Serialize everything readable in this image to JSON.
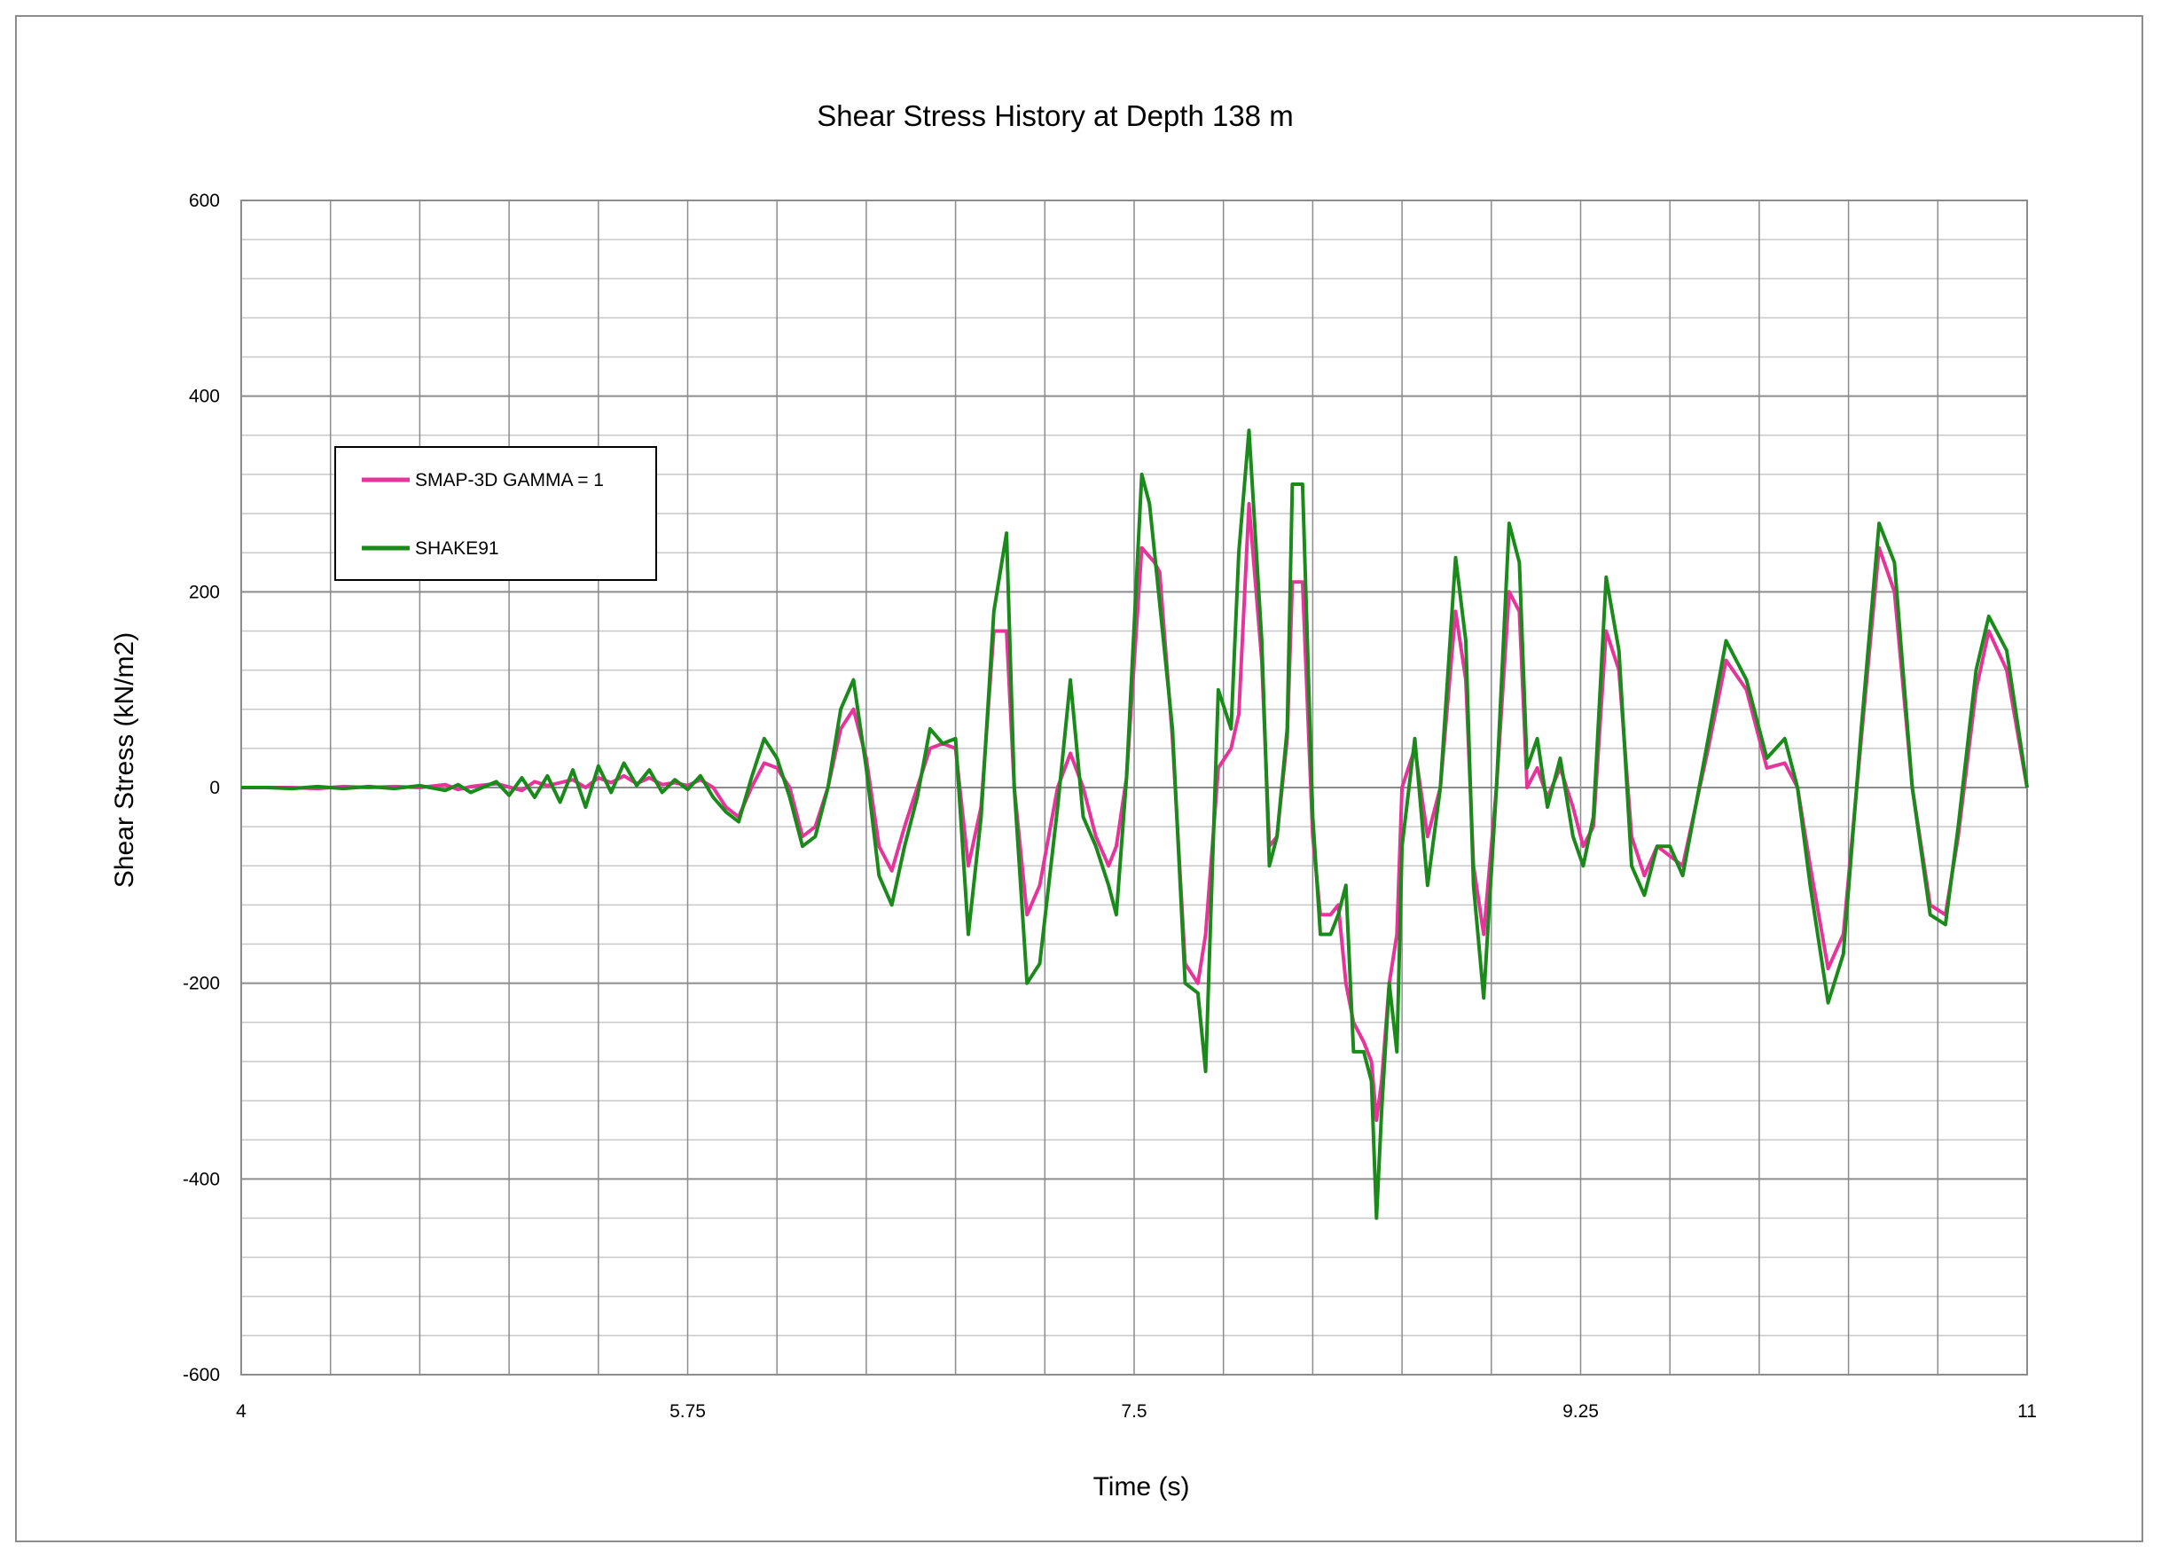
{
  "chart_data": {
    "type": "line",
    "title": "Shear Stress History  at Depth 138 m",
    "xlabel": "Time (s)",
    "ylabel": "Shear  Stress (kN/m2)",
    "xlim": [
      4,
      11
    ],
    "ylim": [
      -600,
      600
    ],
    "x_ticks": [
      4,
      5.75,
      7.5,
      9.25,
      11
    ],
    "x_tick_labels": [
      "4",
      "5.75",
      "7.5",
      "9.25",
      "11"
    ],
    "y_ticks": [
      600,
      400,
      200,
      0,
      -200,
      -400,
      -600
    ],
    "y_tick_labels": [
      "600",
      "400",
      "200",
      "0",
      "-200",
      "-400",
      "-600"
    ],
    "x_major_step": 0.35,
    "y_minor_step": 40,
    "grid": true,
    "legend_position": "upper-left",
    "series": [
      {
        "name": "SMAP-3D  GAMMA = 1",
        "color": "#e6349b",
        "points": [
          [
            4.0,
            0
          ],
          [
            4.1,
            0
          ],
          [
            4.2,
            0
          ],
          [
            4.3,
            -1
          ],
          [
            4.4,
            1
          ],
          [
            4.5,
            0
          ],
          [
            4.6,
            1
          ],
          [
            4.7,
            0
          ],
          [
            4.8,
            3
          ],
          [
            4.85,
            -2
          ],
          [
            4.9,
            1
          ],
          [
            5.0,
            4
          ],
          [
            5.1,
            -3
          ],
          [
            5.15,
            6
          ],
          [
            5.2,
            2
          ],
          [
            5.3,
            8
          ],
          [
            5.35,
            0
          ],
          [
            5.4,
            10
          ],
          [
            5.45,
            5
          ],
          [
            5.5,
            12
          ],
          [
            5.55,
            4
          ],
          [
            5.6,
            10
          ],
          [
            5.65,
            3
          ],
          [
            5.7,
            5
          ],
          [
            5.75,
            2
          ],
          [
            5.8,
            8
          ],
          [
            5.85,
            0
          ],
          [
            5.9,
            -20
          ],
          [
            5.95,
            -30
          ],
          [
            6.0,
            0
          ],
          [
            6.05,
            25
          ],
          [
            6.1,
            20
          ],
          [
            6.15,
            0
          ],
          [
            6.2,
            -50
          ],
          [
            6.25,
            -40
          ],
          [
            6.3,
            0
          ],
          [
            6.35,
            60
          ],
          [
            6.4,
            80
          ],
          [
            6.45,
            30
          ],
          [
            6.5,
            -60
          ],
          [
            6.55,
            -85
          ],
          [
            6.6,
            -40
          ],
          [
            6.65,
            0
          ],
          [
            6.7,
            40
          ],
          [
            6.75,
            45
          ],
          [
            6.8,
            40
          ],
          [
            6.85,
            -80
          ],
          [
            6.9,
            -20
          ],
          [
            6.95,
            160
          ],
          [
            7.0,
            160
          ],
          [
            7.03,
            0
          ],
          [
            7.08,
            -130
          ],
          [
            7.13,
            -100
          ],
          [
            7.2,
            0
          ],
          [
            7.25,
            35
          ],
          [
            7.3,
            0
          ],
          [
            7.35,
            -50
          ],
          [
            7.4,
            -80
          ],
          [
            7.43,
            -60
          ],
          [
            7.47,
            10
          ],
          [
            7.53,
            245
          ],
          [
            7.58,
            230
          ],
          [
            7.6,
            220
          ],
          [
            7.65,
            50
          ],
          [
            7.7,
            -180
          ],
          [
            7.75,
            -200
          ],
          [
            7.78,
            -150
          ],
          [
            7.83,
            20
          ],
          [
            7.88,
            40
          ],
          [
            7.91,
            75
          ],
          [
            7.95,
            290
          ],
          [
            8.0,
            130
          ],
          [
            8.03,
            -60
          ],
          [
            8.06,
            -50
          ],
          [
            8.1,
            50
          ],
          [
            8.12,
            210
          ],
          [
            8.16,
            210
          ],
          [
            8.2,
            -50
          ],
          [
            8.23,
            -130
          ],
          [
            8.27,
            -130
          ],
          [
            8.3,
            -120
          ],
          [
            8.33,
            -200
          ],
          [
            8.36,
            -240
          ],
          [
            8.4,
            -260
          ],
          [
            8.43,
            -280
          ],
          [
            8.45,
            -340
          ],
          [
            8.47,
            -300
          ],
          [
            8.5,
            -200
          ],
          [
            8.53,
            -150
          ],
          [
            8.55,
            0
          ],
          [
            8.6,
            40
          ],
          [
            8.65,
            -50
          ],
          [
            8.7,
            0
          ],
          [
            8.76,
            180
          ],
          [
            8.8,
            110
          ],
          [
            8.83,
            -80
          ],
          [
            8.87,
            -150
          ],
          [
            8.92,
            0
          ],
          [
            8.97,
            200
          ],
          [
            9.01,
            180
          ],
          [
            9.04,
            0
          ],
          [
            9.08,
            20
          ],
          [
            9.12,
            -10
          ],
          [
            9.17,
            20
          ],
          [
            9.22,
            -20
          ],
          [
            9.26,
            -60
          ],
          [
            9.3,
            -40
          ],
          [
            9.35,
            160
          ],
          [
            9.4,
            120
          ],
          [
            9.45,
            -50
          ],
          [
            9.5,
            -90
          ],
          [
            9.55,
            -60
          ],
          [
            9.6,
            -70
          ],
          [
            9.65,
            -80
          ],
          [
            9.75,
            40
          ],
          [
            9.82,
            130
          ],
          [
            9.9,
            100
          ],
          [
            9.98,
            20
          ],
          [
            10.05,
            25
          ],
          [
            10.1,
            0
          ],
          [
            10.15,
            -80
          ],
          [
            10.22,
            -185
          ],
          [
            10.28,
            -150
          ],
          [
            10.35,
            50
          ],
          [
            10.42,
            245
          ],
          [
            10.48,
            200
          ],
          [
            10.55,
            0
          ],
          [
            10.62,
            -120
          ],
          [
            10.68,
            -130
          ],
          [
            10.73,
            -50
          ],
          [
            10.8,
            100
          ],
          [
            10.85,
            160
          ],
          [
            10.92,
            120
          ],
          [
            11.0,
            0
          ]
        ]
      },
      {
        "name": "SHAKE91",
        "color": "#1a8a1a",
        "points": [
          [
            4.0,
            0
          ],
          [
            4.1,
            0
          ],
          [
            4.2,
            -1
          ],
          [
            4.3,
            1
          ],
          [
            4.4,
            -1
          ],
          [
            4.5,
            1
          ],
          [
            4.6,
            -1
          ],
          [
            4.7,
            2
          ],
          [
            4.8,
            -3
          ],
          [
            4.85,
            3
          ],
          [
            4.9,
            -5
          ],
          [
            5.0,
            6
          ],
          [
            5.05,
            -8
          ],
          [
            5.1,
            10
          ],
          [
            5.15,
            -10
          ],
          [
            5.2,
            12
          ],
          [
            5.25,
            -15
          ],
          [
            5.3,
            18
          ],
          [
            5.35,
            -20
          ],
          [
            5.4,
            22
          ],
          [
            5.45,
            -5
          ],
          [
            5.5,
            25
          ],
          [
            5.55,
            2
          ],
          [
            5.6,
            18
          ],
          [
            5.65,
            -5
          ],
          [
            5.7,
            8
          ],
          [
            5.75,
            -2
          ],
          [
            5.8,
            12
          ],
          [
            5.85,
            -10
          ],
          [
            5.9,
            -25
          ],
          [
            5.95,
            -35
          ],
          [
            6.0,
            10
          ],
          [
            6.05,
            50
          ],
          [
            6.1,
            30
          ],
          [
            6.15,
            -10
          ],
          [
            6.2,
            -60
          ],
          [
            6.25,
            -50
          ],
          [
            6.3,
            0
          ],
          [
            6.35,
            80
          ],
          [
            6.4,
            110
          ],
          [
            6.45,
            20
          ],
          [
            6.5,
            -90
          ],
          [
            6.55,
            -120
          ],
          [
            6.6,
            -60
          ],
          [
            6.65,
            -10
          ],
          [
            6.7,
            60
          ],
          [
            6.75,
            45
          ],
          [
            6.8,
            50
          ],
          [
            6.85,
            -150
          ],
          [
            6.9,
            -30
          ],
          [
            6.95,
            180
          ],
          [
            7.0,
            260
          ],
          [
            7.03,
            0
          ],
          [
            7.08,
            -200
          ],
          [
            7.13,
            -180
          ],
          [
            7.2,
            -20
          ],
          [
            7.25,
            110
          ],
          [
            7.3,
            -30
          ],
          [
            7.35,
            -60
          ],
          [
            7.4,
            -100
          ],
          [
            7.43,
            -130
          ],
          [
            7.47,
            10
          ],
          [
            7.53,
            320
          ],
          [
            7.56,
            290
          ],
          [
            7.58,
            240
          ],
          [
            7.65,
            60
          ],
          [
            7.7,
            -200
          ],
          [
            7.75,
            -210
          ],
          [
            7.78,
            -290
          ],
          [
            7.83,
            100
          ],
          [
            7.88,
            60
          ],
          [
            7.91,
            240
          ],
          [
            7.95,
            365
          ],
          [
            8.0,
            150
          ],
          [
            8.03,
            -80
          ],
          [
            8.06,
            -50
          ],
          [
            8.1,
            60
          ],
          [
            8.12,
            310
          ],
          [
            8.16,
            310
          ],
          [
            8.2,
            -30
          ],
          [
            8.23,
            -150
          ],
          [
            8.27,
            -150
          ],
          [
            8.3,
            -130
          ],
          [
            8.33,
            -100
          ],
          [
            8.36,
            -270
          ],
          [
            8.4,
            -270
          ],
          [
            8.43,
            -300
          ],
          [
            8.45,
            -440
          ],
          [
            8.47,
            -330
          ],
          [
            8.5,
            -200
          ],
          [
            8.53,
            -270
          ],
          [
            8.55,
            -60
          ],
          [
            8.6,
            50
          ],
          [
            8.65,
            -100
          ],
          [
            8.7,
            0
          ],
          [
            8.76,
            235
          ],
          [
            8.8,
            150
          ],
          [
            8.83,
            -100
          ],
          [
            8.87,
            -215
          ],
          [
            8.92,
            0
          ],
          [
            8.97,
            270
          ],
          [
            9.01,
            230
          ],
          [
            9.04,
            20
          ],
          [
            9.08,
            50
          ],
          [
            9.12,
            -20
          ],
          [
            9.17,
            30
          ],
          [
            9.22,
            -50
          ],
          [
            9.26,
            -80
          ],
          [
            9.3,
            -30
          ],
          [
            9.35,
            215
          ],
          [
            9.4,
            140
          ],
          [
            9.45,
            -80
          ],
          [
            9.5,
            -110
          ],
          [
            9.55,
            -60
          ],
          [
            9.6,
            -60
          ],
          [
            9.65,
            -90
          ],
          [
            9.75,
            50
          ],
          [
            9.82,
            150
          ],
          [
            9.9,
            110
          ],
          [
            9.98,
            30
          ],
          [
            10.05,
            50
          ],
          [
            10.1,
            0
          ],
          [
            10.15,
            -100
          ],
          [
            10.22,
            -220
          ],
          [
            10.28,
            -170
          ],
          [
            10.35,
            60
          ],
          [
            10.42,
            270
          ],
          [
            10.48,
            230
          ],
          [
            10.55,
            0
          ],
          [
            10.62,
            -130
          ],
          [
            10.68,
            -140
          ],
          [
            10.73,
            -40
          ],
          [
            10.8,
            120
          ],
          [
            10.85,
            175
          ],
          [
            10.92,
            140
          ],
          [
            11.0,
            0
          ]
        ]
      }
    ]
  }
}
